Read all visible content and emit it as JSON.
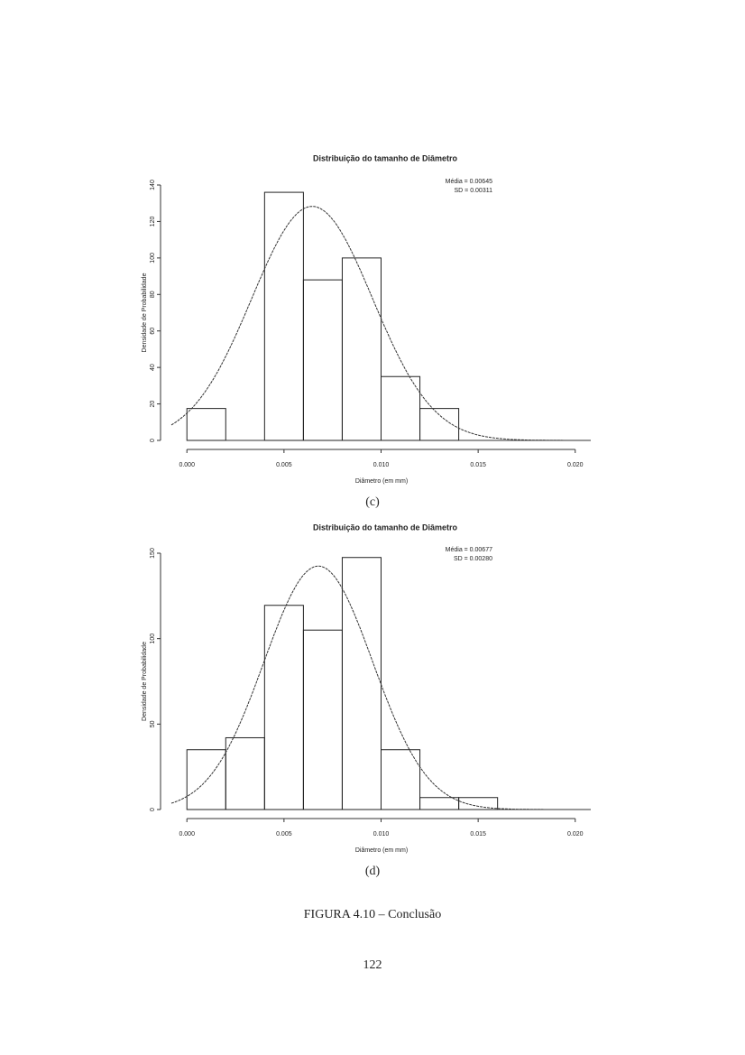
{
  "chart_data": [
    {
      "type": "histogram",
      "title": "Distribuição do tamanho de Diâmetro",
      "x_label": "Diâmetro (em mm)",
      "y_label": "Densidade de Probabilidade",
      "bins": [
        0,
        0.002,
        0.004,
        0.006,
        0.008,
        0.01,
        0.012,
        0.014,
        0.016
      ],
      "counts": [
        17.5,
        0,
        136,
        88,
        100,
        35,
        17.5,
        0
      ],
      "curve": {
        "mean": 0.00645,
        "sd": 0.00311
      },
      "annotations": [
        "Média = 0.00645",
        "SD = 0.00311"
      ],
      "xlim": [
        -0.0008,
        0.0208
      ],
      "ylim": [
        0,
        140
      ],
      "xticks": [
        {
          "value": 0,
          "label": "0.000"
        },
        {
          "value": 0.005,
          "label": "0.005"
        },
        {
          "value": 0.01,
          "label": "0.010"
        },
        {
          "value": 0.015,
          "label": "0.015"
        },
        {
          "value": 0.02,
          "label": "0.020"
        }
      ],
      "yticks": [
        0,
        20,
        40,
        60,
        80,
        100,
        120,
        140
      ],
      "caption": "(c)"
    },
    {
      "type": "histogram",
      "title": "Distribuição do tamanho de Diâmetro",
      "x_label": "Diâmetro (em mm)",
      "y_label": "Densidade de Probabilidade",
      "bins": [
        0,
        0.002,
        0.004,
        0.006,
        0.008,
        0.01,
        0.012,
        0.014,
        0.016
      ],
      "counts": [
        35,
        42,
        119.5,
        105,
        147.5,
        35,
        7,
        7
      ],
      "curve": {
        "mean": 0.00677,
        "sd": 0.0028
      },
      "annotations": [
        "Média = 0.00677",
        "SD = 0.00280"
      ],
      "xlim": [
        -0.0008,
        0.0208
      ],
      "ylim": [
        0,
        150
      ],
      "xticks": [
        {
          "value": 0,
          "label": "0.000"
        },
        {
          "value": 0.005,
          "label": "0.005"
        },
        {
          "value": 0.01,
          "label": "0.010"
        },
        {
          "value": 0.015,
          "label": "0.015"
        },
        {
          "value": 0.02,
          "label": "0.020"
        }
      ],
      "yticks": [
        0,
        50,
        100,
        150
      ],
      "caption": "(d)"
    }
  ],
  "figure_caption": "FIGURA 4.10 – Conclusão",
  "page_number": "122"
}
